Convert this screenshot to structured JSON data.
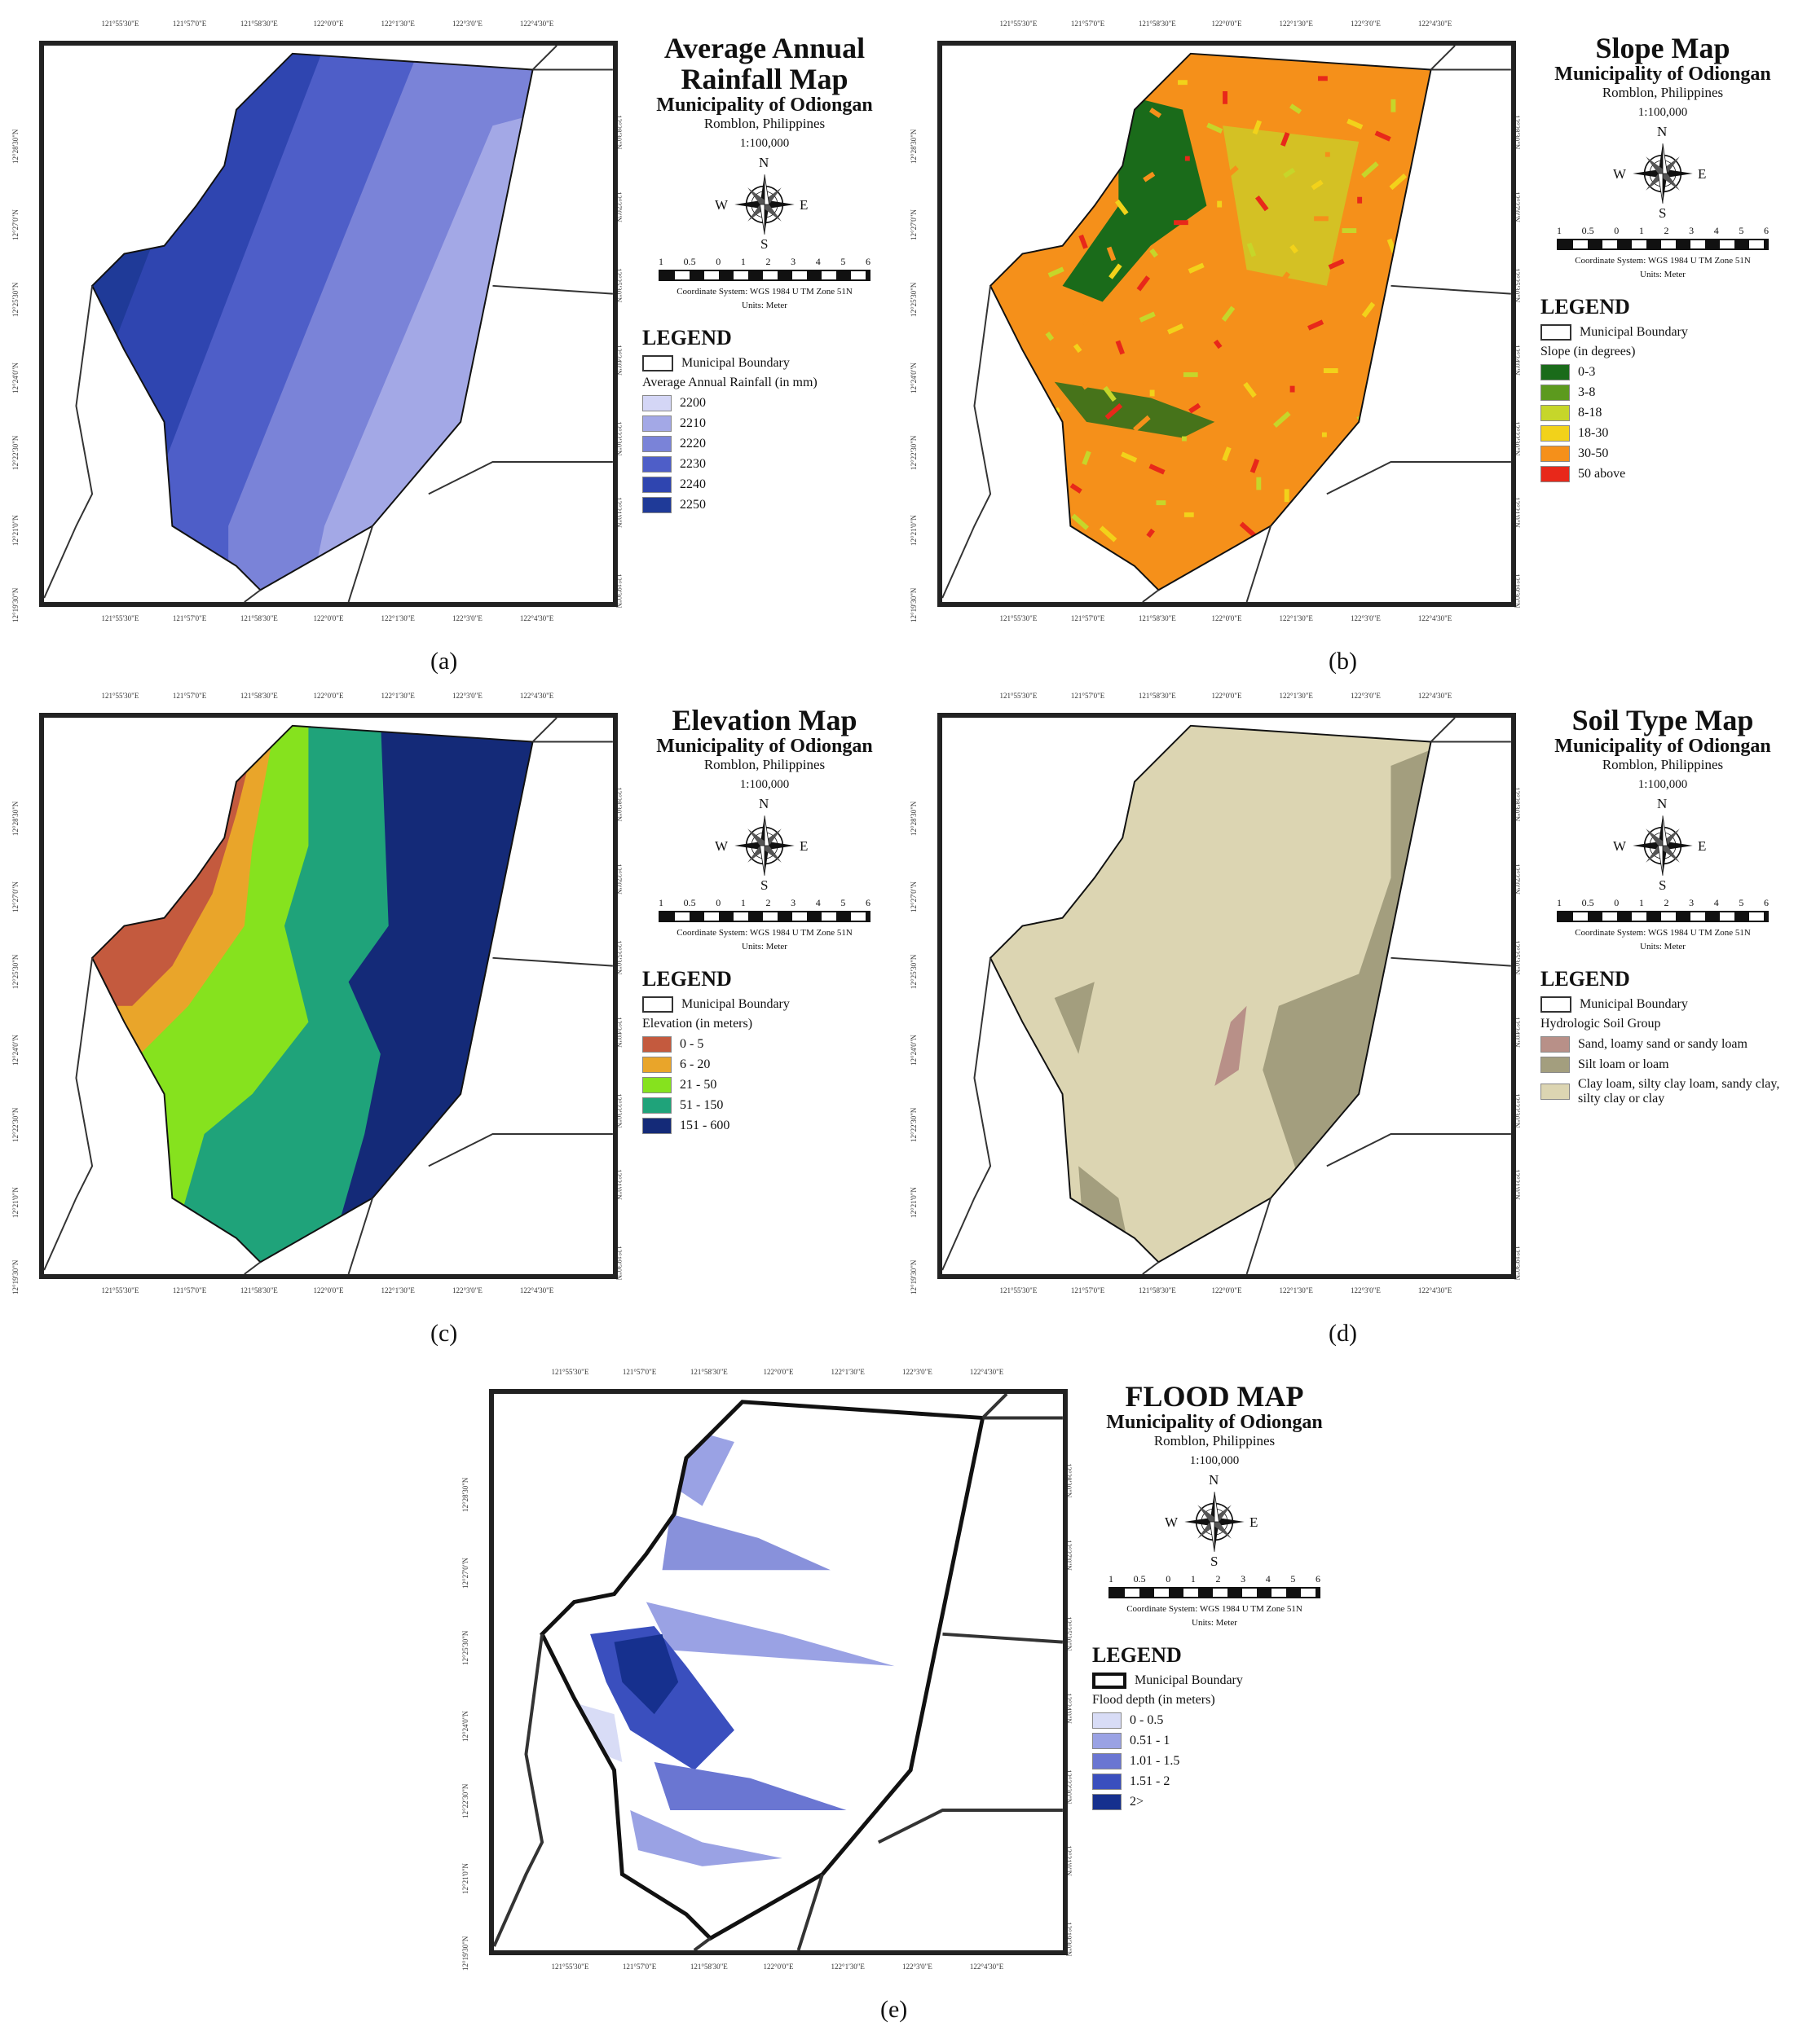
{
  "ticks": {
    "top": [
      "121°55'30\"E",
      "121°57'0\"E",
      "121°58'30\"E",
      "122°0'0\"E",
      "122°1'30\"E",
      "122°3'0\"E",
      "122°4'30\"E"
    ],
    "left": [
      "12°28'30\"N",
      "12°27'0\"N",
      "12°25'30\"N",
      "12°24'0\"N",
      "12°22'30\"N",
      "12°21'0\"N",
      "12°19'30\"N"
    ]
  },
  "common": {
    "subtitle": "Municipality of Odiongan",
    "place": "Romblon, Philippines",
    "scale": "1:100,000",
    "compass": {
      "n": "N",
      "s": "S",
      "e": "E",
      "w": "W"
    },
    "scale_nums": [
      "1",
      "0.5",
      "0",
      "1",
      "2",
      "3",
      "4",
      "5",
      "6"
    ],
    "coord": "Coordinate System: WGS 1984 U TM Zone 51N",
    "units": "Units: Meter",
    "legend_title": "LEGEND",
    "boundary": "Municipal Boundary"
  },
  "panels": [
    {
      "id": "a",
      "caption": "(a)",
      "title_lines": [
        "Average Annual",
        "Rainfall Map"
      ],
      "legend_subtitle": "Average Annual Rainfall (in mm)",
      "classes": [
        {
          "label": "2200",
          "color": "#d4d6f6"
        },
        {
          "label": "2210",
          "color": "#a3a8e6"
        },
        {
          "label": "2220",
          "color": "#7a83d8"
        },
        {
          "label": "2230",
          "color": "#4e5ec8"
        },
        {
          "label": "2240",
          "color": "#2f45b0"
        },
        {
          "label": "2250",
          "color": "#1f3a98"
        }
      ]
    },
    {
      "id": "b",
      "caption": "(b)",
      "title_lines": [
        "Slope Map"
      ],
      "legend_subtitle": "Slope (in degrees)",
      "classes": [
        {
          "label": "0-3",
          "color": "#1a6b1a"
        },
        {
          "label": "3-8",
          "color": "#5c9a1e"
        },
        {
          "label": "8-18",
          "color": "#c6d62a"
        },
        {
          "label": "18-30",
          "color": "#f2d21a"
        },
        {
          "label": "30-50",
          "color": "#f5901a"
        },
        {
          "label": "50 above",
          "color": "#e8281a"
        }
      ]
    },
    {
      "id": "c",
      "caption": "(c)",
      "title_lines": [
        "Elevation Map"
      ],
      "legend_subtitle": "Elevation (in meters)",
      "classes": [
        {
          "label": "0 - 5",
          "color": "#c45a3e"
        },
        {
          "label": "6 - 20",
          "color": "#e9a52a"
        },
        {
          "label": "21 - 50",
          "color": "#86e21e"
        },
        {
          "label": "51 - 150",
          "color": "#1fa37a"
        },
        {
          "label": "151 - 600",
          "color": "#142a78"
        }
      ]
    },
    {
      "id": "d",
      "caption": "(d)",
      "title_lines": [
        "Soil Type Map"
      ],
      "legend_subtitle": "Hydrologic Soil Group",
      "classes": [
        {
          "label": "Sand, loamy sand or sandy loam",
          "color": "#b89088"
        },
        {
          "label": "Silt loam or loam",
          "color": "#a39e7e"
        },
        {
          "label": "Clay loam, silty clay loam, sandy clay, silty clay or clay",
          "color": "#dcd5b2"
        }
      ]
    },
    {
      "id": "e",
      "caption": "(e)",
      "title_lines": [
        "FLOOD MAP"
      ],
      "legend_subtitle": "Flood depth (in meters)",
      "classes": [
        {
          "label": "0 - 0.5",
          "color": "#d8dcf6"
        },
        {
          "label": "0.51 - 1",
          "color": "#9aa2e4"
        },
        {
          "label": "1.01 - 1.5",
          "color": "#6a76d2"
        },
        {
          "label": "1.51 - 2",
          "color": "#3a4fbe"
        },
        {
          "label": "2>",
          "color": "#16308e"
        }
      ]
    }
  ]
}
